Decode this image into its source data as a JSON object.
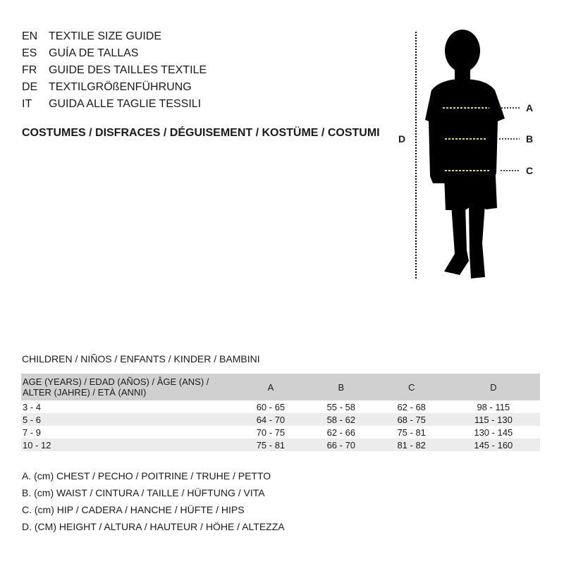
{
  "languages": [
    {
      "code": "EN",
      "text": "TEXTILE SIZE GUIDE"
    },
    {
      "code": "ES",
      "text": "GUÍA DE TALLAS"
    },
    {
      "code": "FR",
      "text": "GUIDE DES TAILLES TEXTILE"
    },
    {
      "code": "DE",
      "text": "TEXTILGRÖßENFÜHRUNG"
    },
    {
      "code": "IT",
      "text": "GUIDA ALLE TAGLIE TESSILI"
    }
  ],
  "title": "COSTUMES / DISFRACES / DÉGUISEMENT / KOSTÜME / COSTUMI",
  "figure": {
    "labels": {
      "a": "A",
      "b": "B",
      "c": "C",
      "d": "D"
    },
    "marker_color": "#e8d84a"
  },
  "children_heading": "CHILDREN / NIÑOS / ENFANTS / KINDER / BAMBINI",
  "table": {
    "headers": [
      "AGE (YEARS) / EDAD (AÑOS) / ÂGE (ANS) / ALTER (JAHRE) / ETÀ (ANNI)",
      "A",
      "B",
      "C",
      "D"
    ],
    "rows": [
      [
        "3 - 4",
        "60 - 65",
        "55 - 58",
        "62 - 68",
        "98 - 115"
      ],
      [
        "5 - 6",
        "64 - 70",
        "58 - 62",
        "68 - 75",
        "115 - 130"
      ],
      [
        "7 - 9",
        "70 - 75",
        "62 - 66",
        "75 - 81",
        "130 - 145"
      ],
      [
        "10 - 12",
        "75 - 81",
        "66 - 70",
        "81 - 82",
        "145 - 160"
      ]
    ]
  },
  "legend": [
    "A. (cm) CHEST / PECHO / POITRINE / TRUHE / PETTO",
    "B. (cm) WAIST / CINTURA / TAILLE / HÜFTUNG / VITA",
    "C. (cm) HIP / CADERA / HANCHE / HÜFTE / HIPS",
    "D. (CM) HEIGHT / ALTURA / HAUTEUR / HÖHE / ALTEZZA"
  ]
}
